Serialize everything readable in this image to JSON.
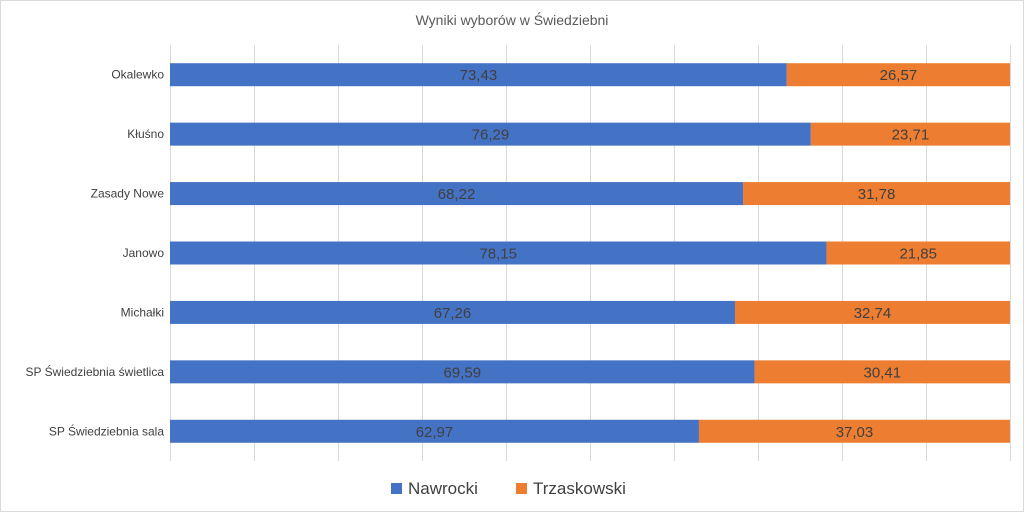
{
  "chart_data": {
    "type": "bar",
    "orientation": "horizontal",
    "stacked": "100%",
    "title": "Wyniki wyborów w Świedziebni",
    "categories": [
      "Okalewko",
      "Kłuśno",
      "Zasady Nowe",
      "Janowo",
      "Michałki",
      "SP Świedziebnia świetlica",
      "SP Świedziebnia sala"
    ],
    "series": [
      {
        "name": "Nawrocki",
        "color": "#4472c4",
        "values": [
          73.43,
          76.29,
          68.22,
          78.15,
          67.26,
          69.59,
          62.97
        ],
        "labels": [
          "73,43",
          "76,29",
          "68,22",
          "78,15",
          "67,26",
          "69,59",
          "62,97"
        ]
      },
      {
        "name": "Trzaskowski",
        "color": "#ed7d31",
        "values": [
          26.57,
          23.71,
          31.78,
          21.85,
          32.74,
          30.41,
          37.03
        ],
        "labels": [
          "26,57",
          "23,71",
          "31,78",
          "21,85",
          "32,74",
          "30,41",
          "37,03"
        ]
      }
    ],
    "xlim": [
      0,
      100
    ],
    "grid": true,
    "legend": "bottom"
  }
}
